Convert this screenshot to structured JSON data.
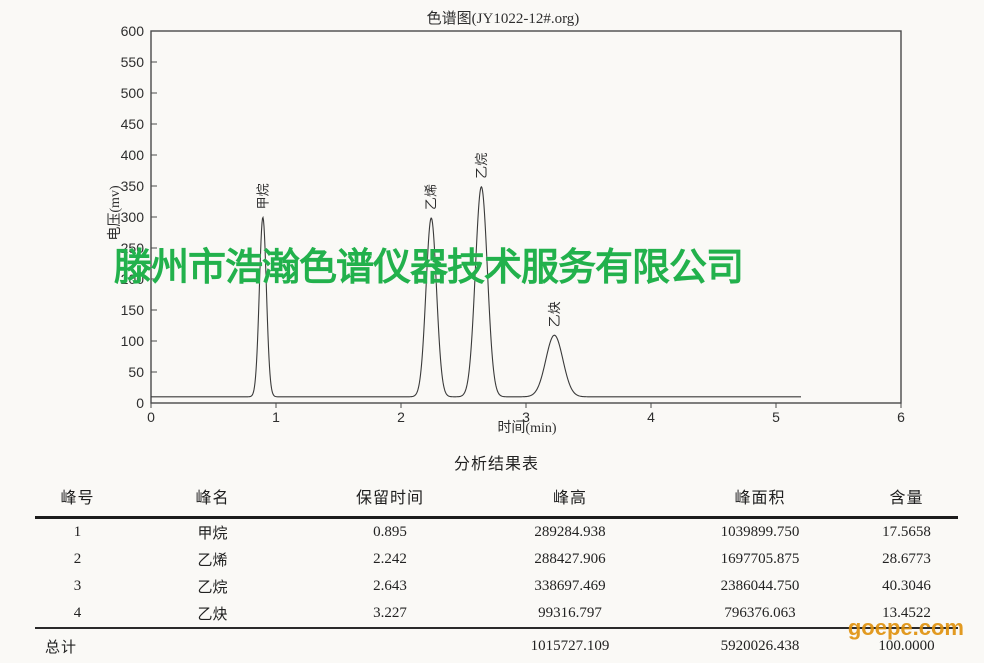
{
  "watermarks": {
    "company": "滕州市浩瀚色谱仪器技术服务有限公司",
    "company_color": "#22b14c",
    "site": "goepe.com",
    "site_color": "#e0920f"
  },
  "chart_data": {
    "type": "line",
    "title": "色谱图(JY1022-12#.org)",
    "xlabel": "时间(min)",
    "ylabel": "电压(mv)",
    "xlim": [
      0,
      6
    ],
    "ylim": [
      0,
      600
    ],
    "xticks": [
      0,
      1,
      2,
      3,
      4,
      5,
      6
    ],
    "yticks": [
      0,
      50,
      100,
      150,
      200,
      250,
      300,
      350,
      400,
      450,
      500,
      550,
      600
    ],
    "grid": false,
    "legend": "none",
    "baseline_mv": 10,
    "trace_start_min": 0,
    "trace_end_min": 5.2,
    "line_color": "#3a3a3a",
    "frame_color": "#4a4a4a",
    "peaks": [
      {
        "name": "甲烷",
        "rt_min": 0.895,
        "height_mv": 289.3,
        "sigma_min": 0.028
      },
      {
        "name": "乙烯",
        "rt_min": 2.242,
        "height_mv": 288.4,
        "sigma_min": 0.042
      },
      {
        "name": "乙烷",
        "rt_min": 2.643,
        "height_mv": 338.7,
        "sigma_min": 0.048
      },
      {
        "name": "乙炔",
        "rt_min": 3.227,
        "height_mv": 99.3,
        "sigma_min": 0.068
      }
    ]
  },
  "table": {
    "title": "分析结果表",
    "headers": [
      "峰号",
      "峰名",
      "保留时间",
      "峰高",
      "峰面积",
      "含量"
    ],
    "rows": [
      [
        "1",
        "甲烷",
        "0.895",
        "289284.938",
        "1039899.750",
        "17.5658"
      ],
      [
        "2",
        "乙烯",
        "2.242",
        "288427.906",
        "1697705.875",
        "28.6773"
      ],
      [
        "3",
        "乙烷",
        "2.643",
        "338697.469",
        "2386044.750",
        "40.3046"
      ],
      [
        "4",
        "乙炔",
        "3.227",
        "99316.797",
        "796376.063",
        "13.4522"
      ]
    ],
    "total_row": [
      "总计",
      "",
      "",
      "1015727.109",
      "5920026.438",
      "100.0000"
    ]
  }
}
